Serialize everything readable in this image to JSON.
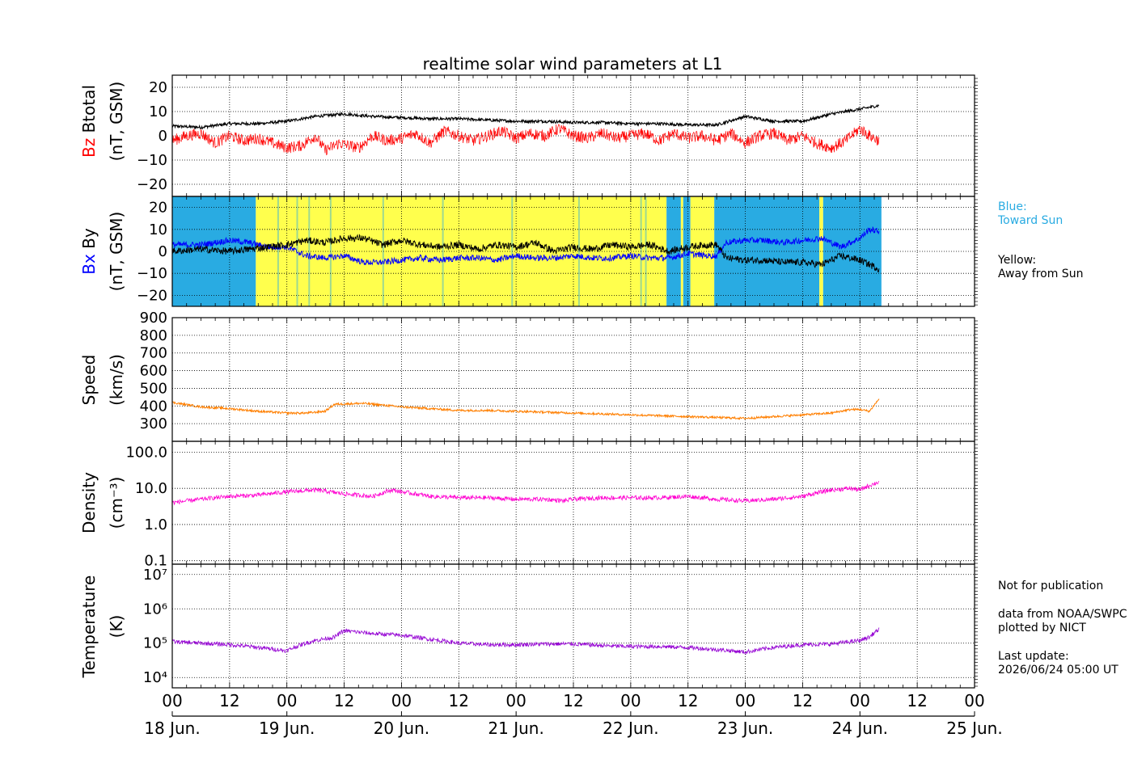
{
  "title": "realtime solar wind parameters at L1",
  "panels": [
    {
      "id": "bt-bz",
      "ylabel_lines": [
        "Btotal",
        "(nT, GSM)"
      ],
      "ylabel_prefix": "Bz",
      "ylim": [
        -25,
        25
      ],
      "yticks": [
        "20",
        "10",
        "0",
        "−10",
        "−20"
      ]
    },
    {
      "id": "by-bx",
      "ylabel_lines": [
        "By",
        "(nT, GSM)"
      ],
      "ylabel_prefix": "Bx",
      "ylim": [
        -25,
        25
      ],
      "yticks": [
        "20",
        "10",
        "0",
        "−10",
        "−20"
      ]
    },
    {
      "id": "speed",
      "ylabel_lines": [
        "Speed",
        "(km/s)"
      ],
      "ylim": [
        200,
        900
      ],
      "yticks": [
        "900",
        "800",
        "700",
        "600",
        "500",
        "400",
        "300"
      ]
    },
    {
      "id": "density",
      "ylabel_lines": [
        "Density",
        "(cm⁻³)"
      ],
      "scale": "log",
      "ylim": [
        0.08,
        200
      ],
      "yticks": [
        "100.0",
        "10.0",
        "1.0",
        "0.1"
      ]
    },
    {
      "id": "temperature",
      "ylabel_lines": [
        "Temperature",
        "(K)"
      ],
      "scale": "log",
      "ylim": [
        5000,
        20000000
      ],
      "yticks": [
        "10⁷",
        "10⁶",
        "10⁵",
        "10⁴"
      ]
    }
  ],
  "x_hour_labels": [
    "00",
    "12",
    "00",
    "12",
    "00",
    "12",
    "00",
    "12",
    "00",
    "12",
    "00",
    "12",
    "00",
    "12",
    "00"
  ],
  "x_day_labels": [
    "18 Jun.",
    "19 Jun.",
    "20 Jun.",
    "21 Jun.",
    "22 Jun.",
    "23 Jun.",
    "24 Jun.",
    "25 Jun."
  ],
  "side_notes": {
    "blue_label": "Blue:\nToward Sun",
    "yellow_label": "Yellow:\nAway from Sun",
    "publication": "Not for publication",
    "source": "data from NOAA/SWPC\nplotted by NICT",
    "last_update": "Last update:\n2026/06/24 05:00 UT"
  },
  "colors": {
    "bz": "#ff0000",
    "bt": "#000000",
    "bx": "#0000ff",
    "by": "#000000",
    "speed": "#ff7f00",
    "density": "#ff00d0",
    "temperature": "#9400d3",
    "toward_sun": "#29abe2",
    "away_from_sun": "#ffff4d",
    "blue_text": "#29abe2"
  },
  "chart_data": {
    "type": "line",
    "x_unit": "hours since 2026-06-18 00:00 UT",
    "x_range": [
      0,
      168
    ],
    "data_end": 148,
    "series": [
      {
        "name": "Btotal",
        "values": [
          [
            0,
            4
          ],
          [
            6,
            3.5
          ],
          [
            12,
            5
          ],
          [
            18,
            5
          ],
          [
            24,
            6
          ],
          [
            30,
            8
          ],
          [
            36,
            9
          ],
          [
            42,
            8
          ],
          [
            48,
            7.5
          ],
          [
            54,
            7
          ],
          [
            60,
            7
          ],
          [
            66,
            6.5
          ],
          [
            72,
            6
          ],
          [
            78,
            6
          ],
          [
            84,
            5.5
          ],
          [
            90,
            5.5
          ],
          [
            96,
            5
          ],
          [
            102,
            5
          ],
          [
            108,
            4.5
          ],
          [
            114,
            4.5
          ],
          [
            120,
            8
          ],
          [
            126,
            6
          ],
          [
            132,
            6
          ],
          [
            138,
            9
          ],
          [
            144,
            11
          ],
          [
            148,
            12.5
          ]
        ]
      },
      {
        "name": "Bz",
        "values": [
          [
            0,
            -2
          ],
          [
            3,
            0
          ],
          [
            6,
            1
          ],
          [
            9,
            -3
          ],
          [
            12,
            0
          ],
          [
            15,
            -2
          ],
          [
            18,
            -1
          ],
          [
            21,
            -3
          ],
          [
            24,
            -5
          ],
          [
            27,
            -4
          ],
          [
            30,
            0
          ],
          [
            32,
            -6
          ],
          [
            35,
            -3
          ],
          [
            39,
            -5
          ],
          [
            42,
            0
          ],
          [
            45,
            -2
          ],
          [
            48,
            -1
          ],
          [
            51,
            1
          ],
          [
            54,
            -3
          ],
          [
            57,
            2
          ],
          [
            60,
            0
          ],
          [
            63,
            -2
          ],
          [
            66,
            0
          ],
          [
            69,
            2
          ],
          [
            72,
            -1
          ],
          [
            75,
            1
          ],
          [
            78,
            0
          ],
          [
            81,
            3
          ],
          [
            84,
            0
          ],
          [
            87,
            -1
          ],
          [
            90,
            1
          ],
          [
            93,
            -1
          ],
          [
            96,
            0
          ],
          [
            99,
            1
          ],
          [
            102,
            -2
          ],
          [
            105,
            1
          ],
          [
            108,
            -1
          ],
          [
            111,
            0
          ],
          [
            114,
            -2
          ],
          [
            117,
            1
          ],
          [
            120,
            -3
          ],
          [
            123,
            0
          ],
          [
            126,
            1
          ],
          [
            129,
            -2
          ],
          [
            132,
            0
          ],
          [
            135,
            -3
          ],
          [
            138,
            -5
          ],
          [
            141,
            -2
          ],
          [
            144,
            3
          ],
          [
            146,
            0
          ],
          [
            148,
            -2
          ]
        ]
      },
      {
        "name": "Bx",
        "values": [
          [
            0,
            3
          ],
          [
            6,
            3
          ],
          [
            12,
            5
          ],
          [
            16,
            4
          ],
          [
            20,
            2
          ],
          [
            24,
            2
          ],
          [
            28,
            -2
          ],
          [
            32,
            -3
          ],
          [
            36,
            -2
          ],
          [
            40,
            -5
          ],
          [
            44,
            -5
          ],
          [
            48,
            -4
          ],
          [
            52,
            -3
          ],
          [
            56,
            -4
          ],
          [
            60,
            -3
          ],
          [
            64,
            -3
          ],
          [
            68,
            -4
          ],
          [
            72,
            -2
          ],
          [
            76,
            -3
          ],
          [
            80,
            -3
          ],
          [
            84,
            -2
          ],
          [
            88,
            -3
          ],
          [
            92,
            -3
          ],
          [
            96,
            -2
          ],
          [
            100,
            -3
          ],
          [
            104,
            -3
          ],
          [
            108,
            -1
          ],
          [
            112,
            -2
          ],
          [
            114,
            -2
          ],
          [
            116,
            4
          ],
          [
            120,
            5
          ],
          [
            124,
            5
          ],
          [
            128,
            4
          ],
          [
            132,
            5
          ],
          [
            136,
            6
          ],
          [
            140,
            2
          ],
          [
            144,
            6
          ],
          [
            146,
            10
          ],
          [
            148,
            9
          ]
        ]
      },
      {
        "name": "By",
        "values": [
          [
            0,
            0
          ],
          [
            6,
            1
          ],
          [
            12,
            0
          ],
          [
            16,
            1
          ],
          [
            20,
            2
          ],
          [
            24,
            3
          ],
          [
            28,
            5
          ],
          [
            32,
            4
          ],
          [
            36,
            6
          ],
          [
            40,
            6
          ],
          [
            44,
            3
          ],
          [
            48,
            5
          ],
          [
            52,
            3
          ],
          [
            56,
            2
          ],
          [
            60,
            3
          ],
          [
            64,
            1
          ],
          [
            68,
            3
          ],
          [
            72,
            2
          ],
          [
            76,
            4
          ],
          [
            80,
            0
          ],
          [
            84,
            2
          ],
          [
            88,
            1
          ],
          [
            92,
            3
          ],
          [
            96,
            2
          ],
          [
            100,
            3
          ],
          [
            104,
            0
          ],
          [
            108,
            2
          ],
          [
            112,
            3
          ],
          [
            114,
            3
          ],
          [
            116,
            -3
          ],
          [
            120,
            -4
          ],
          [
            124,
            -4
          ],
          [
            128,
            -5
          ],
          [
            132,
            -5
          ],
          [
            136,
            -6
          ],
          [
            140,
            -2
          ],
          [
            144,
            -4
          ],
          [
            146,
            -6
          ],
          [
            148,
            -8
          ]
        ]
      },
      {
        "name": "Speed",
        "values": [
          [
            0,
            420
          ],
          [
            6,
            395
          ],
          [
            12,
            385
          ],
          [
            18,
            370
          ],
          [
            24,
            360
          ],
          [
            28,
            360
          ],
          [
            32,
            370
          ],
          [
            34,
            410
          ],
          [
            40,
            415
          ],
          [
            44,
            405
          ],
          [
            48,
            395
          ],
          [
            54,
            385
          ],
          [
            60,
            375
          ],
          [
            66,
            375
          ],
          [
            72,
            370
          ],
          [
            78,
            365
          ],
          [
            84,
            360
          ],
          [
            90,
            355
          ],
          [
            96,
            350
          ],
          [
            102,
            345
          ],
          [
            108,
            340
          ],
          [
            114,
            335
          ],
          [
            120,
            330
          ],
          [
            126,
            340
          ],
          [
            132,
            350
          ],
          [
            138,
            360
          ],
          [
            142,
            380
          ],
          [
            144,
            380
          ],
          [
            146,
            370
          ],
          [
            148,
            440
          ]
        ]
      },
      {
        "name": "Density",
        "values": [
          [
            0,
            4
          ],
          [
            6,
            5
          ],
          [
            12,
            6
          ],
          [
            18,
            6.5
          ],
          [
            24,
            8
          ],
          [
            30,
            9
          ],
          [
            36,
            7
          ],
          [
            42,
            6
          ],
          [
            46,
            9
          ],
          [
            48,
            8
          ],
          [
            54,
            6
          ],
          [
            60,
            5.5
          ],
          [
            66,
            5.5
          ],
          [
            72,
            5
          ],
          [
            78,
            5
          ],
          [
            82,
            4.5
          ],
          [
            84,
            5
          ],
          [
            90,
            5.5
          ],
          [
            96,
            5.5
          ],
          [
            102,
            5.5
          ],
          [
            108,
            6
          ],
          [
            114,
            5
          ],
          [
            120,
            4.5
          ],
          [
            126,
            5
          ],
          [
            132,
            6
          ],
          [
            138,
            9
          ],
          [
            142,
            10
          ],
          [
            144,
            9
          ],
          [
            146,
            12
          ],
          [
            148,
            15
          ]
        ]
      },
      {
        "name": "Temperature",
        "values": [
          [
            0,
            110000
          ],
          [
            6,
            100000
          ],
          [
            12,
            90000
          ],
          [
            18,
            75000
          ],
          [
            24,
            60000
          ],
          [
            30,
            120000
          ],
          [
            34,
            150000
          ],
          [
            36,
            230000
          ],
          [
            42,
            190000
          ],
          [
            48,
            170000
          ],
          [
            54,
            130000
          ],
          [
            60,
            100000
          ],
          [
            66,
            90000
          ],
          [
            72,
            90000
          ],
          [
            78,
            95000
          ],
          [
            84,
            95000
          ],
          [
            90,
            85000
          ],
          [
            96,
            80000
          ],
          [
            102,
            80000
          ],
          [
            108,
            75000
          ],
          [
            114,
            65000
          ],
          [
            120,
            55000
          ],
          [
            126,
            75000
          ],
          [
            132,
            90000
          ],
          [
            138,
            95000
          ],
          [
            142,
            110000
          ],
          [
            144,
            120000
          ],
          [
            146,
            150000
          ],
          [
            148,
            250000
          ]
        ]
      }
    ],
    "imf_sector_bands": [
      {
        "from": 0,
        "to": 17.5,
        "sector": "toward_sun"
      },
      {
        "from": 17.5,
        "to": 103.5,
        "sector": "away_from_sun"
      },
      {
        "from": 103.5,
        "to": 106.5,
        "sector": "toward_sun"
      },
      {
        "from": 106.5,
        "to": 107,
        "sector": "away_from_sun"
      },
      {
        "from": 107,
        "to": 108.5,
        "sector": "toward_sun"
      },
      {
        "from": 108.5,
        "to": 113.5,
        "sector": "away_from_sun"
      },
      {
        "from": 113.5,
        "to": 135.5,
        "sector": "toward_sun"
      },
      {
        "from": 135.5,
        "to": 136.3,
        "sector": "away_from_sun"
      },
      {
        "from": 136.3,
        "to": 148.5,
        "sector": "toward_sun"
      }
    ]
  }
}
